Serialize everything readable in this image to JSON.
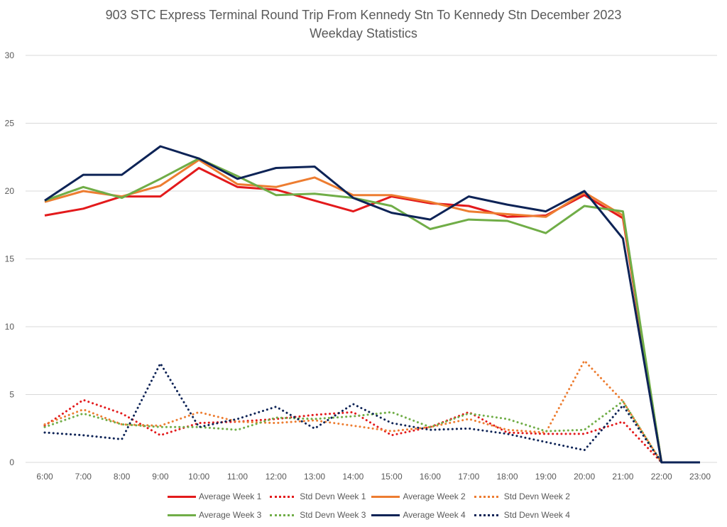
{
  "chart_data": {
    "type": "line",
    "title": "903 STC Express Terminal Round Trip From Kennedy Stn To Kennedy Stn December 2023",
    "subtitle": "Weekday Statistics",
    "xlabel": "",
    "ylabel": "",
    "categories": [
      "6:00",
      "7:00",
      "8:00",
      "9:00",
      "10:00",
      "11:00",
      "12:00",
      "13:00",
      "14:00",
      "15:00",
      "16:00",
      "17:00",
      "18:00",
      "19:00",
      "20:00",
      "21:00",
      "22:00",
      "23:00"
    ],
    "ylim": [
      0,
      30
    ],
    "yticks": [
      0,
      5,
      10,
      15,
      20,
      25,
      30
    ],
    "grid": true,
    "legend_position": "bottom",
    "series": [
      {
        "name": "Average Week 1",
        "style": "solid",
        "color": "#e31a1c",
        "values": [
          18.2,
          18.7,
          19.6,
          19.6,
          21.7,
          20.3,
          20.1,
          19.3,
          18.5,
          19.6,
          19.1,
          18.9,
          18.1,
          18.2,
          19.7,
          18.0,
          0,
          null
        ]
      },
      {
        "name": "Std Devn Week 1",
        "style": "dotted",
        "color": "#e31a1c",
        "values": [
          2.7,
          4.6,
          3.6,
          2.0,
          2.9,
          3.0,
          3.2,
          3.5,
          3.7,
          2.0,
          2.6,
          3.7,
          2.2,
          2.1,
          2.1,
          3.0,
          0,
          null
        ]
      },
      {
        "name": "Average Week 2",
        "style": "solid",
        "color": "#ed7d31",
        "values": [
          19.2,
          20.0,
          19.6,
          20.4,
          22.3,
          20.5,
          20.3,
          21.0,
          19.7,
          19.7,
          19.2,
          18.5,
          18.3,
          18.1,
          19.9,
          18.2,
          0,
          null
        ]
      },
      {
        "name": "Std Devn Week 2",
        "style": "dotted",
        "color": "#ed7d31",
        "values": [
          2.8,
          3.9,
          2.8,
          2.7,
          3.7,
          3.0,
          2.9,
          3.1,
          2.7,
          2.3,
          2.6,
          3.2,
          2.4,
          2.2,
          7.5,
          4.5,
          0,
          null
        ]
      },
      {
        "name": "Average Week 3",
        "style": "solid",
        "color": "#70ad47",
        "values": [
          19.3,
          20.3,
          19.5,
          20.9,
          22.4,
          21.1,
          19.7,
          19.8,
          19.5,
          18.9,
          17.2,
          17.9,
          17.8,
          16.9,
          18.9,
          18.5,
          0,
          null
        ]
      },
      {
        "name": "Std Devn Week 3",
        "style": "dotted",
        "color": "#70ad47",
        "values": [
          2.6,
          3.6,
          2.8,
          2.6,
          2.6,
          2.4,
          3.3,
          3.2,
          3.4,
          3.7,
          2.6,
          3.6,
          3.2,
          2.3,
          2.4,
          4.5,
          0,
          null
        ]
      },
      {
        "name": "Average Week 4",
        "style": "solid",
        "color": "#0d2356",
        "values": [
          19.3,
          21.2,
          21.2,
          23.3,
          22.4,
          20.9,
          21.7,
          21.8,
          19.5,
          18.4,
          17.9,
          19.6,
          19.0,
          18.5,
          20.0,
          16.5,
          0,
          0
        ]
      },
      {
        "name": "Std Devn Week 4",
        "style": "dotted",
        "color": "#0d2356",
        "values": [
          2.2,
          2.0,
          1.7,
          7.3,
          2.6,
          3.2,
          4.1,
          2.5,
          4.3,
          2.9,
          2.4,
          2.5,
          2.1,
          1.5,
          0.9,
          4.2,
          0,
          null
        ]
      }
    ]
  },
  "legend_rows": [
    [
      0,
      1,
      2,
      3
    ],
    [
      4,
      5,
      6,
      7
    ]
  ]
}
